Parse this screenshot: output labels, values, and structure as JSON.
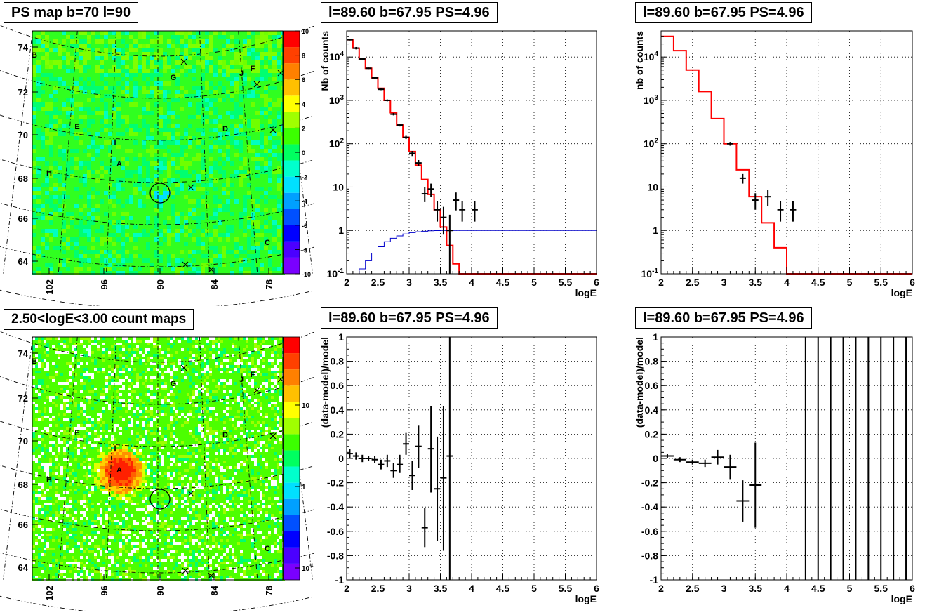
{
  "titles": {
    "map_top": "PS map b=70 l=90",
    "map_bottom": "2.50<logE<3.00 count maps",
    "spec_full": "l=89.60 b=67.95 PS=4.96",
    "spec_sel": "l=89.60 b=67.95 PS=4.96",
    "res_full": "l=89.60 b=67.95 PS=4.96",
    "res_sel": "l=89.60 b=67.95 PS=4.96"
  },
  "chart_data": [
    {
      "id": "ps_map",
      "type": "heatmap",
      "title": "PS map b=70 l=90",
      "y_ticks": [
        "74",
        "72",
        "70",
        "68",
        "66",
        "64"
      ],
      "x_ticks": [
        "102",
        "96",
        "90",
        "84",
        "78"
      ],
      "colorbar_ticks": [
        "10",
        "8",
        "6",
        "4",
        "2",
        "0",
        "-2",
        "-4",
        "-6",
        "-8",
        "-10"
      ],
      "zlim": [
        -10,
        10
      ],
      "source_labels": [
        "A",
        "B",
        "C",
        "D",
        "E",
        "F",
        "G",
        "H",
        "I",
        "J"
      ]
    },
    {
      "id": "spectrum_full",
      "type": "line",
      "title": "l=89.60 b=67.95 PS=4.96",
      "xlabel": "logE",
      "ylabel": "Nb of counts",
      "xlim": [
        2,
        6
      ],
      "ylim": [
        0.1,
        40000
      ],
      "yscale": "log",
      "x_ticks": [
        "2",
        "2.5",
        "3",
        "3.5",
        "4",
        "4.5",
        "5",
        "5.5",
        "6"
      ],
      "y_ticks": [
        "10^-1",
        "1",
        "10",
        "10^2",
        "10^3",
        "10^4"
      ],
      "grid": true,
      "series": [
        {
          "style": "step",
          "color": "#ff0000",
          "bins": 40,
          "values": [
            25000,
            16000,
            9000,
            5500,
            3300,
            1900,
            1000,
            520,
            270,
            140,
            66,
            32,
            15,
            6.8,
            3,
            1.2,
            0.45,
            0.17,
            0.1,
            0.1,
            0.1,
            0.1,
            0.1,
            0.1,
            0.1,
            0.1,
            0.1,
            0.1,
            0.1,
            0.1,
            0.1,
            0.1,
            0.1,
            0.1,
            0.1,
            0.1,
            0.1,
            0.1,
            0.1,
            0.1
          ]
        },
        {
          "style": "step",
          "color": "#0000cc",
          "bins": 40,
          "values": [
            0.1,
            0.1,
            0.13,
            0.2,
            0.3,
            0.42,
            0.55,
            0.66,
            0.75,
            0.83,
            0.89,
            0.93,
            0.96,
            0.98,
            0.99,
            1,
            1,
            1,
            1,
            1,
            1,
            1,
            1,
            1,
            1,
            1,
            1,
            1,
            1,
            1,
            1,
            1,
            1,
            1,
            1,
            1,
            1,
            1,
            1,
            1
          ]
        },
        {
          "style": "errorbars",
          "color": "#000000",
          "points": [
            {
              "x": 2.05,
              "y": 25000,
              "ylo": 24000,
              "yhi": 26000
            },
            {
              "x": 2.15,
              "y": 16000,
              "ylo": 15000,
              "yhi": 17000
            },
            {
              "x": 2.25,
              "y": 9000,
              "ylo": 8700,
              "yhi": 9300
            },
            {
              "x": 2.35,
              "y": 5500,
              "ylo": 5300,
              "yhi": 5700
            },
            {
              "x": 2.45,
              "y": 3300,
              "ylo": 3200,
              "yhi": 3400
            },
            {
              "x": 2.55,
              "y": 1800,
              "ylo": 1720,
              "yhi": 1880
            },
            {
              "x": 2.65,
              "y": 1000,
              "ylo": 950,
              "yhi": 1050
            },
            {
              "x": 2.75,
              "y": 480,
              "ylo": 450,
              "yhi": 510
            },
            {
              "x": 2.85,
              "y": 270,
              "ylo": 250,
              "yhi": 290
            },
            {
              "x": 2.95,
              "y": 140,
              "ylo": 128,
              "yhi": 152
            },
            {
              "x": 3.05,
              "y": 60,
              "ylo": 52,
              "yhi": 68
            },
            {
              "x": 3.15,
              "y": 36,
              "ylo": 30,
              "yhi": 42
            },
            {
              "x": 3.25,
              "y": 7,
              "ylo": 4.5,
              "yhi": 10
            },
            {
              "x": 3.35,
              "y": 9,
              "ylo": 6,
              "yhi": 12
            },
            {
              "x": 3.45,
              "y": 3,
              "ylo": 1.6,
              "yhi": 4.7
            },
            {
              "x": 3.55,
              "y": 2,
              "ylo": 0.8,
              "yhi": 3.5
            },
            {
              "x": 3.65,
              "y": 1,
              "ylo": 0.1,
              "yhi": 2.3
            },
            {
              "x": 3.75,
              "y": 5,
              "ylo": 2.9,
              "yhi": 7.5
            },
            {
              "x": 3.85,
              "y": 3,
              "ylo": 1.6,
              "yhi": 4.7
            },
            {
              "x": 4.05,
              "y": 3,
              "ylo": 1.6,
              "yhi": 4.7
            }
          ]
        }
      ]
    },
    {
      "id": "spectrum_selected",
      "type": "line",
      "title": "l=89.60 b=67.95 PS=4.96",
      "xlabel": "logE",
      "ylabel": "nb of counts",
      "xlim": [
        2,
        6
      ],
      "ylim": [
        0.1,
        40000
      ],
      "yscale": "log",
      "x_ticks": [
        "2",
        "2.5",
        "3",
        "3.5",
        "4",
        "4.5",
        "5",
        "5.5",
        "6"
      ],
      "y_ticks": [
        "10^-1",
        "1",
        "10",
        "10^2",
        "10^3",
        "10^4"
      ],
      "grid": true,
      "series": [
        {
          "style": "step",
          "color": "#ff0000",
          "bins": 20,
          "values": [
            30000,
            14000,
            5000,
            1600,
            380,
            100,
            25,
            6,
            1.5,
            0.4,
            0.1,
            0.1,
            0.1,
            0.1,
            0.1,
            0.1,
            0.1,
            0.1,
            0.1,
            0.1
          ]
        },
        {
          "style": "errorbars",
          "color": "#000000",
          "points": [
            {
              "x": 3.1,
              "y": 100,
              "ylo": 90,
              "yhi": 110
            },
            {
              "x": 3.3,
              "y": 16,
              "ylo": 12,
              "yhi": 20
            },
            {
              "x": 3.5,
              "y": 5,
              "ylo": 3,
              "yhi": 7.2
            },
            {
              "x": 3.7,
              "y": 6,
              "ylo": 3.6,
              "yhi": 8.5
            },
            {
              "x": 3.9,
              "y": 3,
              "ylo": 1.6,
              "yhi": 4.7
            },
            {
              "x": 4.1,
              "y": 3,
              "ylo": 1.6,
              "yhi": 4.7
            }
          ]
        }
      ]
    },
    {
      "id": "count_map",
      "type": "heatmap",
      "title": "2.50<logE<3.00 count maps",
      "y_ticks": [
        "74",
        "72",
        "70",
        "68",
        "66",
        "64"
      ],
      "x_ticks": [
        "102",
        "96",
        "90",
        "84",
        "78"
      ],
      "colorbar_ticks": [
        "10",
        "1",
        "10^-1"
      ],
      "zscale": "log",
      "source_labels": [
        "A",
        "B",
        "C",
        "D",
        "E",
        "F",
        "G",
        "H",
        "I",
        "J"
      ]
    },
    {
      "id": "residual_full",
      "type": "scatter",
      "title": "l=89.60 b=67.95 PS=4.96",
      "xlabel": "logE",
      "ylabel": "(data-model)/model",
      "xlim": [
        2,
        6
      ],
      "ylim": [
        -1,
        1
      ],
      "x_ticks": [
        "2",
        "2.5",
        "3",
        "3.5",
        "4",
        "4.5",
        "5",
        "5.5",
        "6"
      ],
      "y_ticks": [
        "1",
        "0.8",
        "0.6",
        "0.4",
        "0.2",
        "0",
        "-0.2",
        "-0.4",
        "-0.6",
        "-0.8",
        "-1"
      ],
      "grid": true,
      "series": [
        {
          "style": "errorbars",
          "color": "#000000",
          "xhalf": 0.05,
          "points": [
            {
              "x": 2.05,
              "y": 0.04,
              "ylo": 0.0,
              "yhi": 0.08
            },
            {
              "x": 2.15,
              "y": 0.02,
              "ylo": -0.01,
              "yhi": 0.05
            },
            {
              "x": 2.25,
              "y": 0.0,
              "ylo": -0.03,
              "yhi": 0.03
            },
            {
              "x": 2.35,
              "y": 0.0,
              "ylo": -0.02,
              "yhi": 0.02
            },
            {
              "x": 2.45,
              "y": -0.01,
              "ylo": -0.04,
              "yhi": 0.02
            },
            {
              "x": 2.55,
              "y": -0.05,
              "ylo": -0.09,
              "yhi": -0.01
            },
            {
              "x": 2.65,
              "y": -0.02,
              "ylo": -0.07,
              "yhi": 0.03
            },
            {
              "x": 2.75,
              "y": -0.1,
              "ylo": -0.16,
              "yhi": -0.04
            },
            {
              "x": 2.85,
              "y": -0.05,
              "ylo": -0.12,
              "yhi": 0.03
            },
            {
              "x": 2.95,
              "y": 0.12,
              "ylo": 0.03,
              "yhi": 0.21
            },
            {
              "x": 3.05,
              "y": -0.14,
              "ylo": -0.26,
              "yhi": -0.02
            },
            {
              "x": 3.15,
              "y": 0.1,
              "ylo": -0.08,
              "yhi": 0.27
            },
            {
              "x": 3.25,
              "y": -0.57,
              "ylo": -0.73,
              "yhi": -0.41
            },
            {
              "x": 3.35,
              "y": 0.08,
              "ylo": -0.28,
              "yhi": 0.43
            },
            {
              "x": 3.45,
              "y": -0.25,
              "ylo": -0.68,
              "yhi": 0.18
            },
            {
              "x": 3.55,
              "y": -0.16,
              "ylo": -0.76,
              "yhi": 0.43
            },
            {
              "x": 3.65,
              "y": 0.02,
              "ylo": -1,
              "yhi": 1
            }
          ]
        }
      ]
    },
    {
      "id": "residual_selected",
      "type": "scatter",
      "title": "l=89.60 b=67.95 PS=4.96",
      "xlabel": "logE",
      "ylabel": "(data-model)/model",
      "xlim": [
        2,
        6
      ],
      "ylim": [
        -1,
        1
      ],
      "x_ticks": [
        "2",
        "2.5",
        "3",
        "3.5",
        "4",
        "4.5",
        "5",
        "5.5",
        "6"
      ],
      "y_ticks": [
        "1",
        "0.8",
        "0.6",
        "0.4",
        "0.2",
        "0",
        "-0.2",
        "-0.4",
        "-0.6",
        "-0.8",
        "-1"
      ],
      "grid": true,
      "series": [
        {
          "style": "errorbars",
          "color": "#000000",
          "xhalf": 0.1,
          "points": [
            {
              "x": 2.1,
              "y": 0.02,
              "ylo": 0.0,
              "yhi": 0.04
            },
            {
              "x": 2.3,
              "y": -0.01,
              "ylo": -0.03,
              "yhi": 0.01
            },
            {
              "x": 2.5,
              "y": -0.03,
              "ylo": -0.05,
              "yhi": -0.01
            },
            {
              "x": 2.7,
              "y": -0.04,
              "ylo": -0.07,
              "yhi": -0.01
            },
            {
              "x": 2.9,
              "y": 0.01,
              "ylo": -0.05,
              "yhi": 0.07
            },
            {
              "x": 3.1,
              "y": -0.07,
              "ylo": -0.17,
              "yhi": 0.03
            },
            {
              "x": 3.3,
              "y": -0.35,
              "ylo": -0.52,
              "yhi": -0.18
            },
            {
              "x": 3.5,
              "y": -0.22,
              "ylo": -0.57,
              "yhi": 0.13
            },
            {
              "x": 4.3,
              "y": 0,
              "ylo": -1,
              "yhi": 1,
              "nocap": true
            },
            {
              "x": 4.5,
              "y": 0,
              "ylo": -1,
              "yhi": 1,
              "nocap": true
            },
            {
              "x": 4.7,
              "y": 0,
              "ylo": -1,
              "yhi": 1,
              "nocap": true
            },
            {
              "x": 4.9,
              "y": 0,
              "ylo": -1,
              "yhi": 1,
              "nocap": true
            },
            {
              "x": 5.1,
              "y": 0,
              "ylo": -1,
              "yhi": 1,
              "nocap": true
            },
            {
              "x": 5.3,
              "y": 0,
              "ylo": -1,
              "yhi": 1,
              "nocap": true
            },
            {
              "x": 5.5,
              "y": 0,
              "ylo": -1,
              "yhi": 1,
              "nocap": true
            },
            {
              "x": 5.7,
              "y": 0,
              "ylo": -1,
              "yhi": 1,
              "nocap": true
            },
            {
              "x": 5.9,
              "y": 0,
              "ylo": -1,
              "yhi": 1,
              "nocap": true
            }
          ]
        }
      ]
    }
  ]
}
